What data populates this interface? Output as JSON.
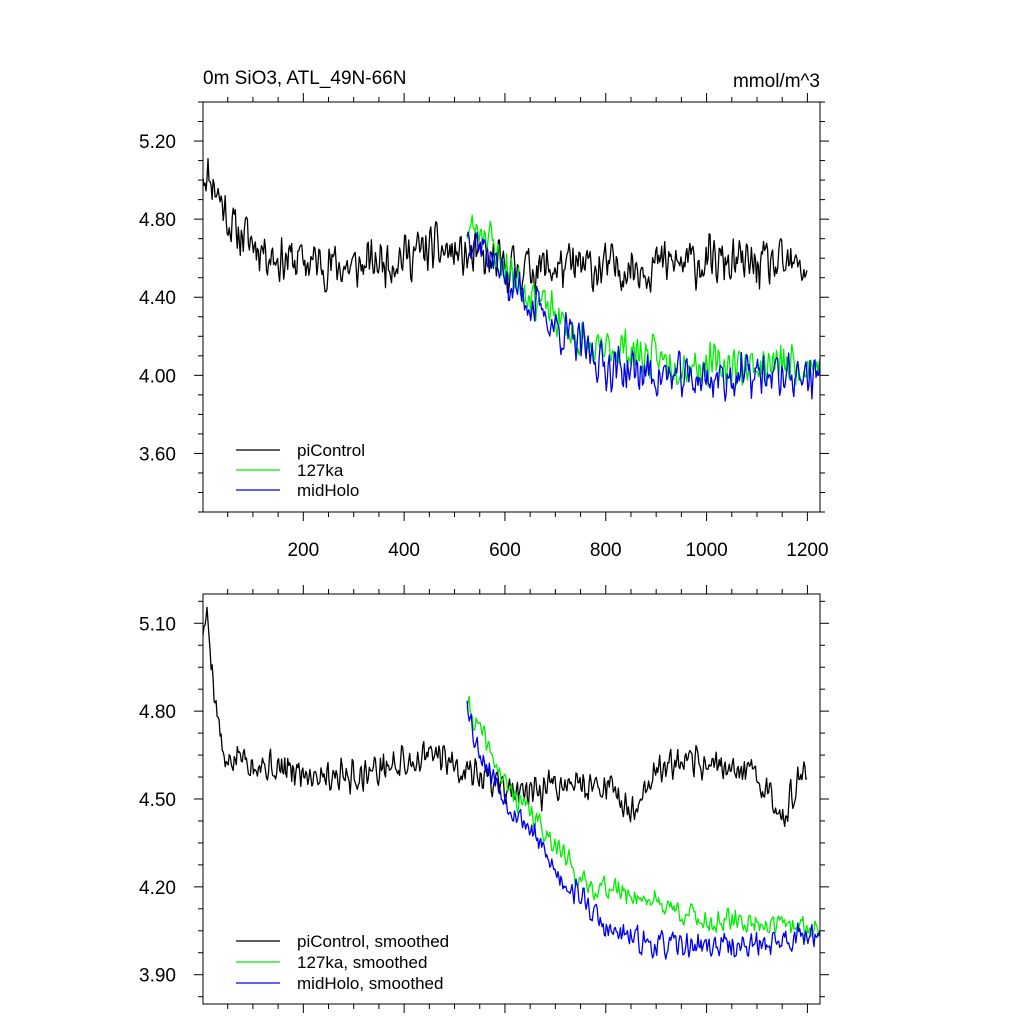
{
  "chart_data": [
    {
      "type": "line",
      "title": "0m SiO3, ATL_49N-66N",
      "units": "mmol/m^3",
      "xlim": [
        1,
        1225
      ],
      "ylim": [
        3.3,
        5.4
      ],
      "xticks": [
        200,
        400,
        600,
        800,
        1000,
        1200
      ],
      "xtick_labels": [
        "200",
        "400",
        "600",
        "800",
        "1000",
        "1200"
      ],
      "yticks": [
        3.6,
        4.0,
        4.4,
        4.8,
        5.2
      ],
      "ytick_labels": [
        "3.60",
        "4.00",
        "4.40",
        "4.80",
        "5.20"
      ],
      "legend_position": "bottom-left",
      "series": [
        {
          "name": "piControl",
          "color": "#000000",
          "start": 1,
          "end": 1200,
          "anchors": [
            [
              1,
              5.05
            ],
            [
              20,
              5.0
            ],
            [
              60,
              4.75
            ],
            [
              150,
              4.6
            ],
            [
              300,
              4.55
            ],
            [
              460,
              4.65
            ],
            [
              530,
              4.6
            ],
            [
              600,
              4.55
            ],
            [
              800,
              4.55
            ],
            [
              1000,
              4.58
            ],
            [
              1200,
              4.55
            ]
          ],
          "noise": 0.15,
          "seed": 11
        },
        {
          "name": "127ka",
          "color": "#00ee00",
          "start": 525,
          "end": 1225,
          "anchors": [
            [
              525,
              4.75
            ],
            [
              560,
              4.75
            ],
            [
              600,
              4.55
            ],
            [
              700,
              4.3
            ],
            [
              780,
              4.1
            ],
            [
              820,
              4.15
            ],
            [
              900,
              4.08
            ],
            [
              1000,
              4.05
            ],
            [
              1100,
              4.05
            ],
            [
              1225,
              4.05
            ]
          ],
          "noise": 0.13,
          "seed": 23
        },
        {
          "name": "midHolo",
          "color": "#0000ee",
          "start": 525,
          "end": 1225,
          "anchors": [
            [
              525,
              4.75
            ],
            [
              560,
              4.65
            ],
            [
              600,
              4.5
            ],
            [
              700,
              4.25
            ],
            [
              800,
              4.05
            ],
            [
              900,
              4.0
            ],
            [
              1000,
              3.98
            ],
            [
              1100,
              4.0
            ],
            [
              1225,
              4.0
            ]
          ],
          "noise": 0.14,
          "seed": 37
        }
      ]
    },
    {
      "type": "line",
      "title": "",
      "xlim": [
        1,
        1225
      ],
      "ylim": [
        3.8,
        5.2
      ],
      "xticks": [
        200,
        400,
        600,
        800,
        1000,
        1200
      ],
      "xtick_labels": [],
      "yticks": [
        3.9,
        4.2,
        4.5,
        4.8,
        5.1
      ],
      "ytick_labels": [
        "3.90",
        "4.20",
        "4.50",
        "4.80",
        "5.10"
      ],
      "legend_position": "bottom-left",
      "series": [
        {
          "name": "piControl, smoothed",
          "color": "#000000",
          "start": 1,
          "end": 1200,
          "anchors": [
            [
              1,
              5.08
            ],
            [
              10,
              5.12
            ],
            [
              25,
              4.85
            ],
            [
              45,
              4.6
            ],
            [
              70,
              4.65
            ],
            [
              150,
              4.6
            ],
            [
              300,
              4.58
            ],
            [
              460,
              4.65
            ],
            [
              530,
              4.6
            ],
            [
              650,
              4.5
            ],
            [
              700,
              4.55
            ],
            [
              800,
              4.55
            ],
            [
              850,
              4.45
            ],
            [
              900,
              4.6
            ],
            [
              1000,
              4.62
            ],
            [
              1100,
              4.58
            ],
            [
              1150,
              4.45
            ],
            [
              1200,
              4.6
            ]
          ],
          "noise": 0.07,
          "seed": 5
        },
        {
          "name": "127ka, smoothed",
          "color": "#00ee00",
          "start": 525,
          "end": 1225,
          "anchors": [
            [
              525,
              4.82
            ],
            [
              560,
              4.7
            ],
            [
              600,
              4.55
            ],
            [
              700,
              4.35
            ],
            [
              760,
              4.2
            ],
            [
              800,
              4.2
            ],
            [
              900,
              4.15
            ],
            [
              1000,
              4.08
            ],
            [
              1100,
              4.08
            ],
            [
              1225,
              4.05
            ]
          ],
          "noise": 0.05,
          "seed": 41
        },
        {
          "name": "midHolo, smoothed",
          "color": "#0000ee",
          "start": 525,
          "end": 1225,
          "anchors": [
            [
              525,
              4.85
            ],
            [
              540,
              4.7
            ],
            [
              600,
              4.5
            ],
            [
              650,
              4.4
            ],
            [
              700,
              4.25
            ],
            [
              760,
              4.15
            ],
            [
              800,
              4.05
            ],
            [
              900,
              4.0
            ],
            [
              1000,
              4.0
            ],
            [
              1100,
              4.0
            ],
            [
              1225,
              4.05
            ]
          ],
          "noise": 0.055,
          "seed": 53
        }
      ]
    }
  ]
}
